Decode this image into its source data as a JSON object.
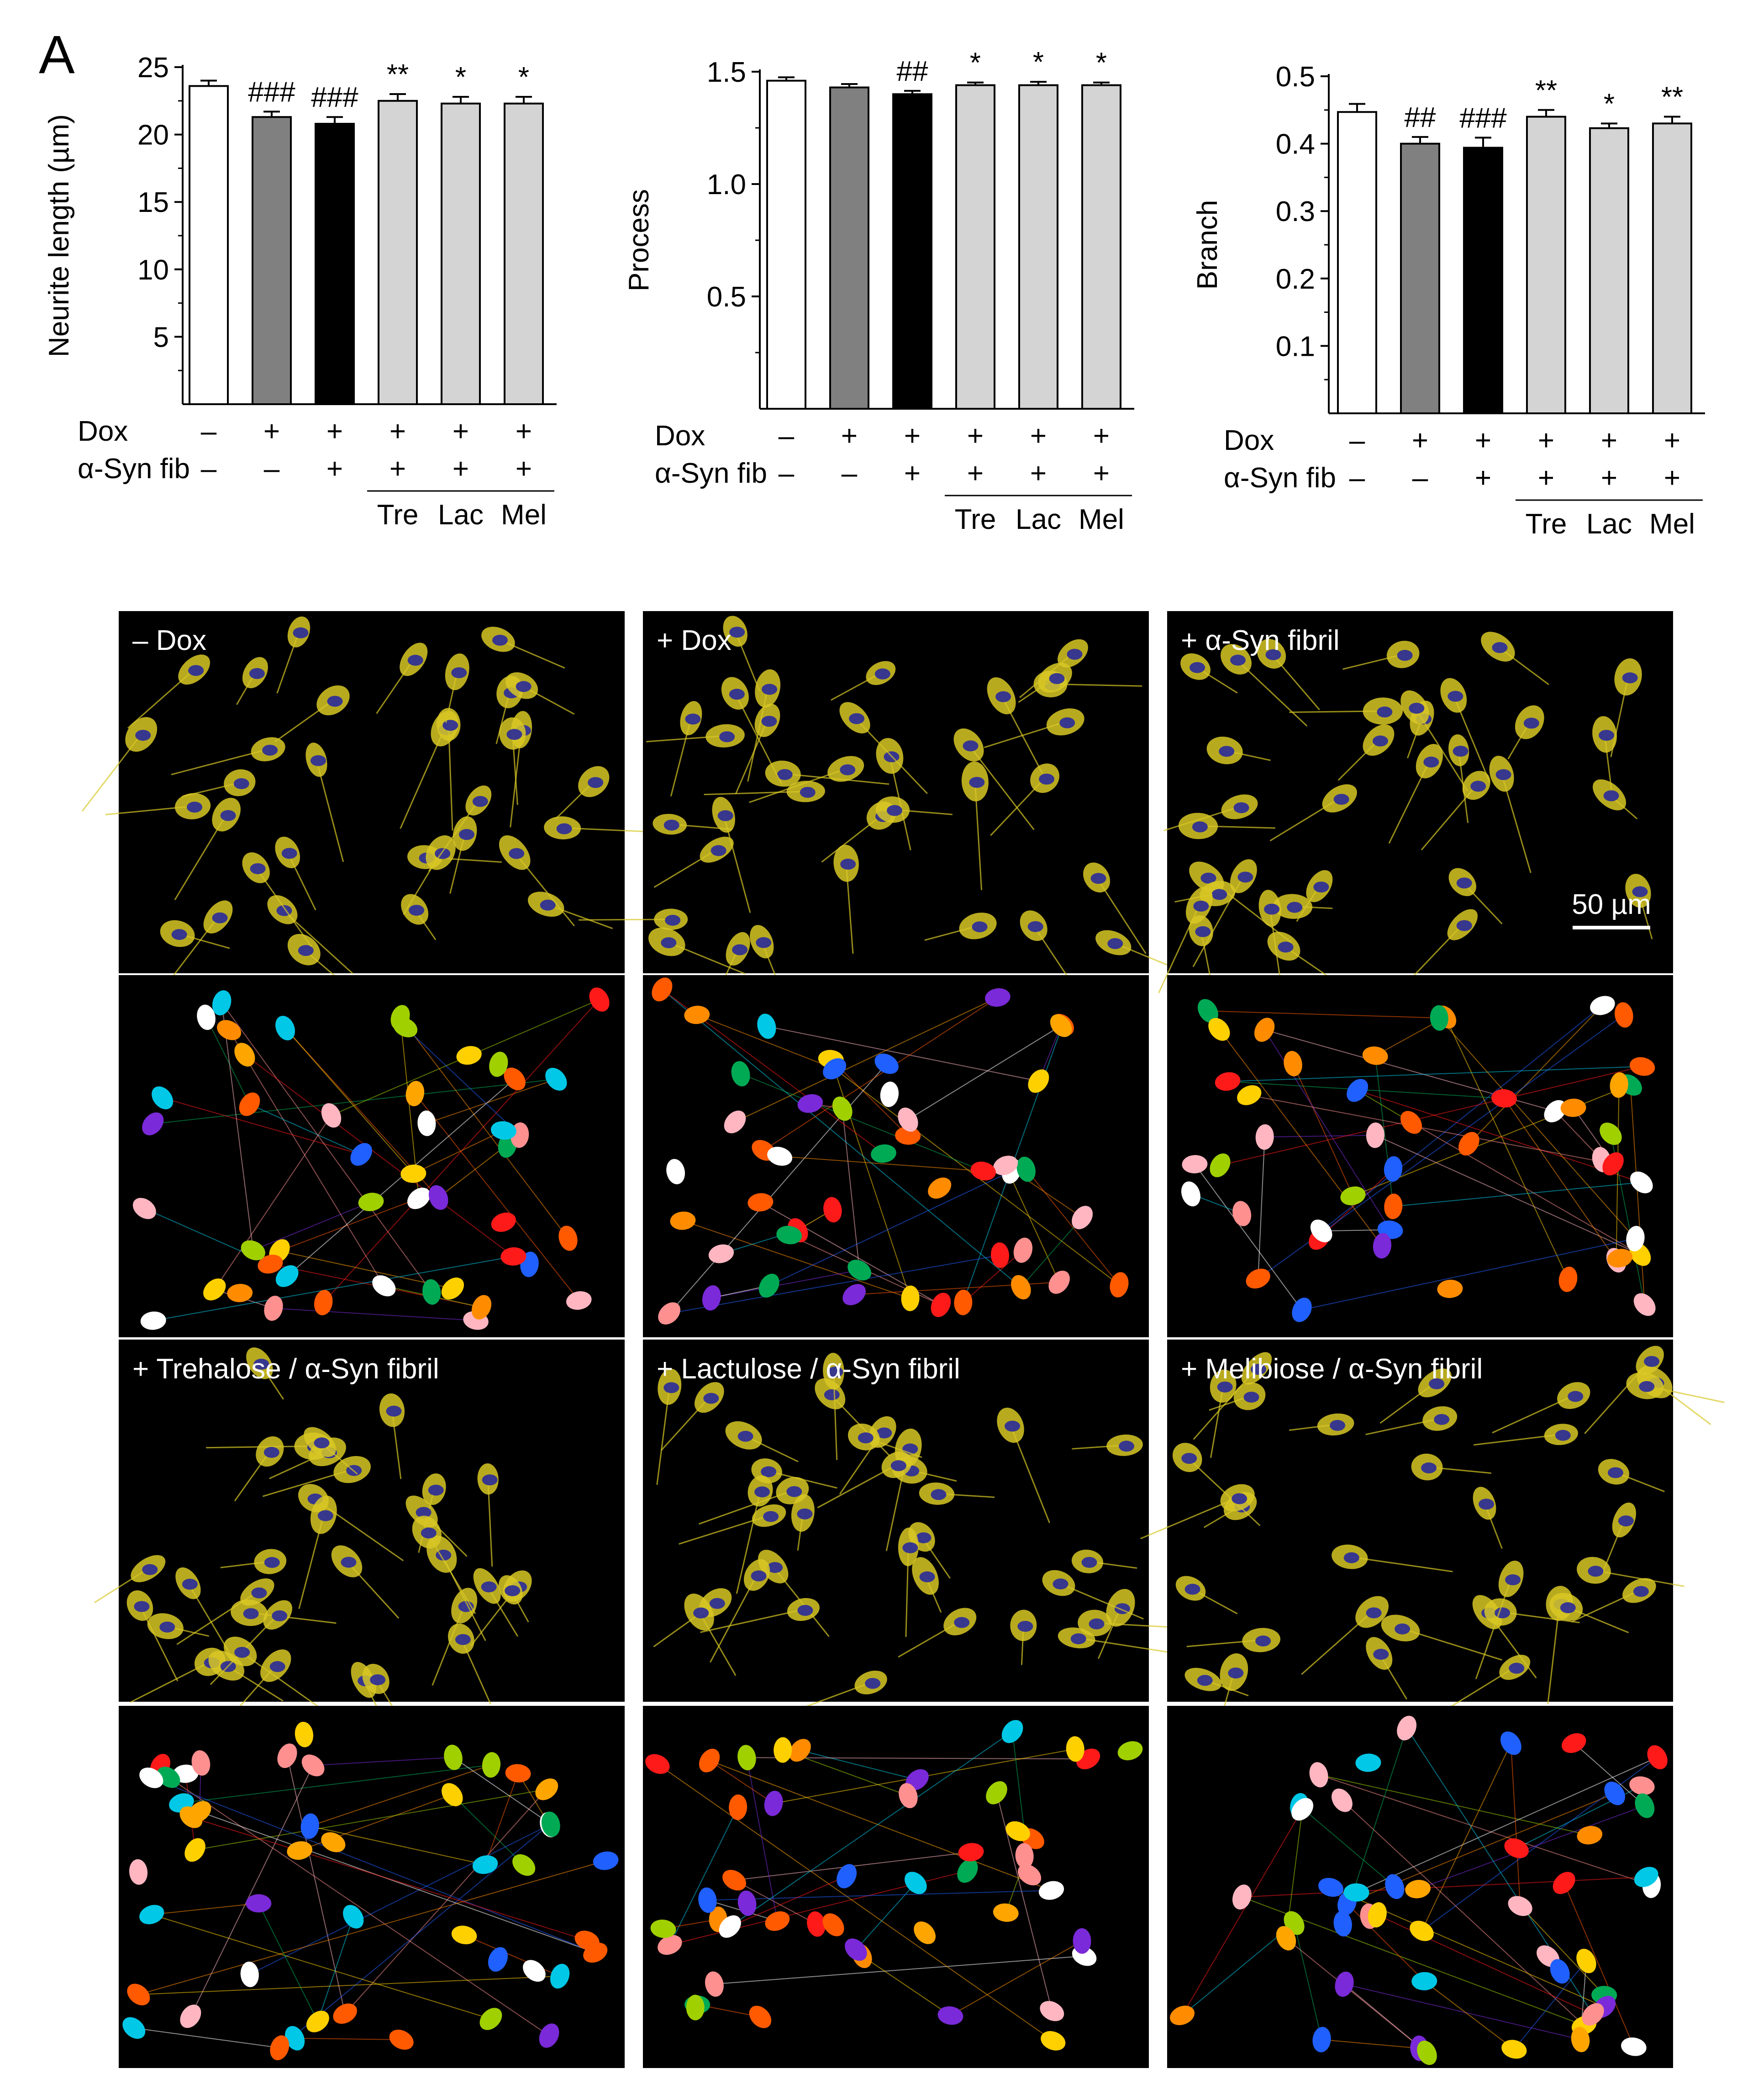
{
  "panel_label": "A",
  "chart_data": [
    {
      "type": "bar",
      "ylabel": "Neurite length (µm)",
      "ylim": [
        0,
        25
      ],
      "yticks": [
        "5",
        "10",
        "15",
        "20",
        "25"
      ],
      "categories": [
        "1",
        "2",
        "3",
        "4",
        "5",
        "6"
      ],
      "values": [
        23.6,
        21.3,
        20.8,
        22.5,
        22.3,
        22.3
      ],
      "errors": [
        0.4,
        0.4,
        0.5,
        0.5,
        0.5,
        0.5
      ],
      "significance": [
        "",
        "###",
        "###",
        "**",
        "*",
        "*"
      ]
    },
    {
      "type": "bar",
      "ylabel": "Process",
      "ylim": [
        0,
        1.5
      ],
      "yticks": [
        "0.5",
        "1.0",
        "1.5"
      ],
      "categories": [
        "1",
        "2",
        "3",
        "4",
        "5",
        "6"
      ],
      "values": [
        1.46,
        1.43,
        1.4,
        1.44,
        1.44,
        1.44
      ],
      "errors": [
        0.015,
        0.015,
        0.015,
        0.012,
        0.015,
        0.012
      ],
      "significance": [
        "",
        "",
        "##",
        "*",
        "*",
        "*"
      ]
    },
    {
      "type": "bar",
      "ylabel": "Branch",
      "ylim": [
        0,
        0.5
      ],
      "yticks": [
        "0.1",
        "0.2",
        "0.3",
        "0.4",
        "0.5"
      ],
      "categories": [
        "1",
        "2",
        "3",
        "4",
        "5",
        "6"
      ],
      "values": [
        0.447,
        0.4,
        0.394,
        0.44,
        0.423,
        0.43
      ],
      "errors": [
        0.012,
        0.01,
        0.015,
        0.01,
        0.007,
        0.01
      ],
      "significance": [
        "",
        "##",
        "###",
        "**",
        "*",
        "**"
      ]
    }
  ],
  "bar_colors": [
    "#ffffff",
    "#808080",
    "#000000",
    "#d4d4d4",
    "#d4d4d4",
    "#d4d4d4"
  ],
  "conditions": {
    "dox_label": "Dox",
    "fib_label": "α-Syn fib",
    "dox": [
      "–",
      "+",
      "+",
      "+",
      "+",
      "+"
    ],
    "fib": [
      "–",
      "–",
      "+",
      "+",
      "+",
      "+"
    ],
    "treatments": [
      "Tre",
      "Lac",
      "Mel"
    ]
  },
  "micrographs": {
    "titles": [
      "– Dox",
      "+ Dox",
      "+ α-Syn fibril",
      "+ Trehalose / α-Syn fibril",
      "+ Lactulose / α-Syn fibril",
      "+ Melibiose / α-Syn fibril"
    ],
    "scale_bar_label": "50 µm"
  },
  "colors": {
    "fluor_bg": "#000000",
    "fluor_cell": "#d8c824",
    "fluor_nucleus": "#2a2a9a",
    "seg_palette": [
      "#ff5a00",
      "#ffd000",
      "#ff8c00",
      "#00aa55",
      "#00c8e6",
      "#ff1a1a",
      "#a0d000",
      "#ff9090",
      "#ffb6c1",
      "#7a2ad8",
      "#ffffff",
      "#2060ff",
      "#ffa500"
    ]
  }
}
